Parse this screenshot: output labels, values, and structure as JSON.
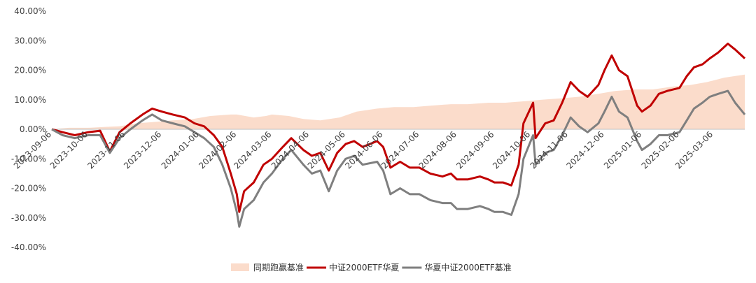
{
  "chart_data": {
    "type": "line",
    "title": "",
    "xlabel": "",
    "ylabel": "",
    "ylim": [
      -40,
      40
    ],
    "y_ticks": [
      -40,
      -30,
      -20,
      -10,
      0,
      10,
      20,
      30,
      40
    ],
    "y_tick_labels": [
      "-40.00%",
      "-30.00%",
      "-20.00%",
      "-10.00%",
      "0.00%",
      "10.00%",
      "20.00%",
      "30.00%",
      "40.00%"
    ],
    "x_range": [
      "2023-09-06",
      "2025-04-01"
    ],
    "x_tick_labels": [
      "2023-09-06",
      "2023-10-06",
      "2023-11-06",
      "2023-12-06",
      "2024-01-06",
      "2024-02-06",
      "2024-03-06",
      "2024-04-06",
      "2024-05-06",
      "2024-06-06",
      "2024-07-06",
      "2024-08-06",
      "2024-09-06",
      "2024-10-06",
      "2024-11-06",
      "2024-12-06",
      "2025-01-06",
      "2025-02-06",
      "2025-03-06"
    ],
    "grid": false,
    "legend_position": "bottom",
    "series": [
      {
        "name": "同期跑赢基准",
        "kind": "area",
        "color": "#fbdccb",
        "points": [
          [
            "2023-09-06",
            0
          ],
          [
            "2023-09-20",
            0.5
          ],
          [
            "2023-10-06",
            0.5
          ],
          [
            "2023-10-20",
            0.8
          ],
          [
            "2023-11-01",
            1.0
          ],
          [
            "2023-11-15",
            2.0
          ],
          [
            "2023-12-01",
            2.5
          ],
          [
            "2023-12-15",
            3.0
          ],
          [
            "2024-01-01",
            3.5
          ],
          [
            "2024-01-15",
            4.5
          ],
          [
            "2024-02-01",
            5.0
          ],
          [
            "2024-02-06",
            5.0
          ],
          [
            "2024-02-20",
            4.0
          ],
          [
            "2024-03-01",
            4.5
          ],
          [
            "2024-03-06",
            5.0
          ],
          [
            "2024-03-20",
            4.5
          ],
          [
            "2024-04-01",
            3.5
          ],
          [
            "2024-04-15",
            3.0
          ],
          [
            "2024-05-01",
            4.0
          ],
          [
            "2024-05-15",
            6.0
          ],
          [
            "2024-06-01",
            7.0
          ],
          [
            "2024-06-15",
            7.5
          ],
          [
            "2024-07-01",
            7.5
          ],
          [
            "2024-07-15",
            8.0
          ],
          [
            "2024-08-01",
            8.5
          ],
          [
            "2024-08-15",
            8.5
          ],
          [
            "2024-09-01",
            9.0
          ],
          [
            "2024-09-15",
            9.0
          ],
          [
            "2024-10-01",
            9.5
          ],
          [
            "2024-10-15",
            10.0
          ],
          [
            "2024-11-01",
            10.5
          ],
          [
            "2024-11-15",
            11.0
          ],
          [
            "2024-12-01",
            12.0
          ],
          [
            "2024-12-15",
            13.0
          ],
          [
            "2025-01-01",
            13.5
          ],
          [
            "2025-01-15",
            13.5
          ],
          [
            "2025-02-01",
            14.5
          ],
          [
            "2025-02-15",
            15.0
          ],
          [
            "2025-03-01",
            16.0
          ],
          [
            "2025-03-15",
            17.5
          ],
          [
            "2025-04-01",
            18.5
          ]
        ]
      },
      {
        "name": "中证2000ETF华夏",
        "kind": "line",
        "color": "#c00000",
        "points": [
          [
            "2023-09-06",
            0
          ],
          [
            "2023-09-15",
            -1
          ],
          [
            "2023-09-25",
            -2
          ],
          [
            "2023-10-06",
            -1
          ],
          [
            "2023-10-16",
            -0.5
          ],
          [
            "2023-10-24",
            -7.5
          ],
          [
            "2023-11-01",
            -1
          ],
          [
            "2023-11-10",
            2
          ],
          [
            "2023-11-20",
            5
          ],
          [
            "2023-11-28",
            7
          ],
          [
            "2023-12-06",
            6
          ],
          [
            "2023-12-15",
            5
          ],
          [
            "2023-12-25",
            4
          ],
          [
            "2024-01-02",
            2
          ],
          [
            "2024-01-10",
            1
          ],
          [
            "2024-01-18",
            -2
          ],
          [
            "2024-01-25",
            -6
          ],
          [
            "2024-02-01",
            -15
          ],
          [
            "2024-02-06",
            -22
          ],
          [
            "2024-02-08",
            -28
          ],
          [
            "2024-02-12",
            -21
          ],
          [
            "2024-02-20",
            -18
          ],
          [
            "2024-02-28",
            -12
          ],
          [
            "2024-03-06",
            -10
          ],
          [
            "2024-03-15",
            -6
          ],
          [
            "2024-03-22",
            -3
          ],
          [
            "2024-04-01",
            -7
          ],
          [
            "2024-04-08",
            -9
          ],
          [
            "2024-04-15",
            -8
          ],
          [
            "2024-04-22",
            -14
          ],
          [
            "2024-04-29",
            -8
          ],
          [
            "2024-05-06",
            -5
          ],
          [
            "2024-05-13",
            -4
          ],
          [
            "2024-05-20",
            -6
          ],
          [
            "2024-06-01",
            -4
          ],
          [
            "2024-06-06",
            -6
          ],
          [
            "2024-06-12",
            -13
          ],
          [
            "2024-06-20",
            -11
          ],
          [
            "2024-06-28",
            -13
          ],
          [
            "2024-07-06",
            -13
          ],
          [
            "2024-07-15",
            -15
          ],
          [
            "2024-07-25",
            -16
          ],
          [
            "2024-08-01",
            -15
          ],
          [
            "2024-08-06",
            -17
          ],
          [
            "2024-08-15",
            -17
          ],
          [
            "2024-08-25",
            -16
          ],
          [
            "2024-09-01",
            -17
          ],
          [
            "2024-09-06",
            -18
          ],
          [
            "2024-09-13",
            -18
          ],
          [
            "2024-09-20",
            -19
          ],
          [
            "2024-09-26",
            -12
          ],
          [
            "2024-09-30",
            2
          ],
          [
            "2024-10-08",
            9
          ],
          [
            "2024-10-10",
            -3
          ],
          [
            "2024-10-18",
            2
          ],
          [
            "2024-10-25",
            3
          ],
          [
            "2024-11-01",
            9
          ],
          [
            "2024-11-08",
            16
          ],
          [
            "2024-11-15",
            13
          ],
          [
            "2024-11-22",
            11
          ],
          [
            "2024-12-01",
            15
          ],
          [
            "2024-12-06",
            20
          ],
          [
            "2024-12-12",
            25
          ],
          [
            "2024-12-18",
            20
          ],
          [
            "2024-12-25",
            18
          ],
          [
            "2025-01-02",
            8
          ],
          [
            "2025-01-06",
            6
          ],
          [
            "2025-01-13",
            8
          ],
          [
            "2025-01-20",
            12
          ],
          [
            "2025-01-27",
            13
          ],
          [
            "2025-02-06",
            14
          ],
          [
            "2025-02-12",
            18
          ],
          [
            "2025-02-18",
            21
          ],
          [
            "2025-02-25",
            22
          ],
          [
            "2025-03-03",
            24
          ],
          [
            "2025-03-10",
            26
          ],
          [
            "2025-03-18",
            29
          ],
          [
            "2025-03-24",
            27
          ],
          [
            "2025-04-01",
            24
          ]
        ]
      },
      {
        "name": "华夏中证2000ETF基准",
        "kind": "line",
        "color": "#7f7f7f",
        "points": [
          [
            "2023-09-06",
            0
          ],
          [
            "2023-09-15",
            -2
          ],
          [
            "2023-09-25",
            -3
          ],
          [
            "2023-10-06",
            -2
          ],
          [
            "2023-10-16",
            -2
          ],
          [
            "2023-10-24",
            -8
          ],
          [
            "2023-11-01",
            -3
          ],
          [
            "2023-11-10",
            0
          ],
          [
            "2023-11-20",
            3
          ],
          [
            "2023-11-28",
            5
          ],
          [
            "2023-12-06",
            3
          ],
          [
            "2023-12-15",
            2
          ],
          [
            "2023-12-25",
            1
          ],
          [
            "2024-01-02",
            -1
          ],
          [
            "2024-01-10",
            -3
          ],
          [
            "2024-01-18",
            -6
          ],
          [
            "2024-01-25",
            -12
          ],
          [
            "2024-02-01",
            -20
          ],
          [
            "2024-02-06",
            -28
          ],
          [
            "2024-02-08",
            -33
          ],
          [
            "2024-02-12",
            -27
          ],
          [
            "2024-02-20",
            -24
          ],
          [
            "2024-02-28",
            -18
          ],
          [
            "2024-03-06",
            -15
          ],
          [
            "2024-03-15",
            -10
          ],
          [
            "2024-03-22",
            -7
          ],
          [
            "2024-04-01",
            -12
          ],
          [
            "2024-04-08",
            -15
          ],
          [
            "2024-04-15",
            -14
          ],
          [
            "2024-04-22",
            -21
          ],
          [
            "2024-04-29",
            -14
          ],
          [
            "2024-05-06",
            -10
          ],
          [
            "2024-05-13",
            -9
          ],
          [
            "2024-05-20",
            -12
          ],
          [
            "2024-06-01",
            -11
          ],
          [
            "2024-06-06",
            -14
          ],
          [
            "2024-06-12",
            -22
          ],
          [
            "2024-06-20",
            -20
          ],
          [
            "2024-06-28",
            -22
          ],
          [
            "2024-07-06",
            -22
          ],
          [
            "2024-07-15",
            -24
          ],
          [
            "2024-07-25",
            -25
          ],
          [
            "2024-08-01",
            -25
          ],
          [
            "2024-08-06",
            -27
          ],
          [
            "2024-08-15",
            -27
          ],
          [
            "2024-08-25",
            -26
          ],
          [
            "2024-09-01",
            -27
          ],
          [
            "2024-09-06",
            -28
          ],
          [
            "2024-09-13",
            -28
          ],
          [
            "2024-09-20",
            -29
          ],
          [
            "2024-09-26",
            -22
          ],
          [
            "2024-09-30",
            -10
          ],
          [
            "2024-10-08",
            -2
          ],
          [
            "2024-10-10",
            -12
          ],
          [
            "2024-10-18",
            -8
          ],
          [
            "2024-10-25",
            -7
          ],
          [
            "2024-11-01",
            -2
          ],
          [
            "2024-11-08",
            4
          ],
          [
            "2024-11-15",
            1
          ],
          [
            "2024-11-22",
            -1
          ],
          [
            "2024-12-01",
            2
          ],
          [
            "2024-12-06",
            6
          ],
          [
            "2024-12-12",
            11
          ],
          [
            "2024-12-18",
            6
          ],
          [
            "2024-12-25",
            4
          ],
          [
            "2025-01-02",
            -4
          ],
          [
            "2025-01-06",
            -7
          ],
          [
            "2025-01-13",
            -5
          ],
          [
            "2025-01-20",
            -2
          ],
          [
            "2025-01-27",
            -2
          ],
          [
            "2025-02-06",
            -1
          ],
          [
            "2025-02-12",
            3
          ],
          [
            "2025-02-18",
            7
          ],
          [
            "2025-02-25",
            9
          ],
          [
            "2025-03-03",
            11
          ],
          [
            "2025-03-10",
            12
          ],
          [
            "2025-03-18",
            13
          ],
          [
            "2025-03-24",
            9
          ],
          [
            "2025-04-01",
            5
          ]
        ]
      }
    ]
  }
}
